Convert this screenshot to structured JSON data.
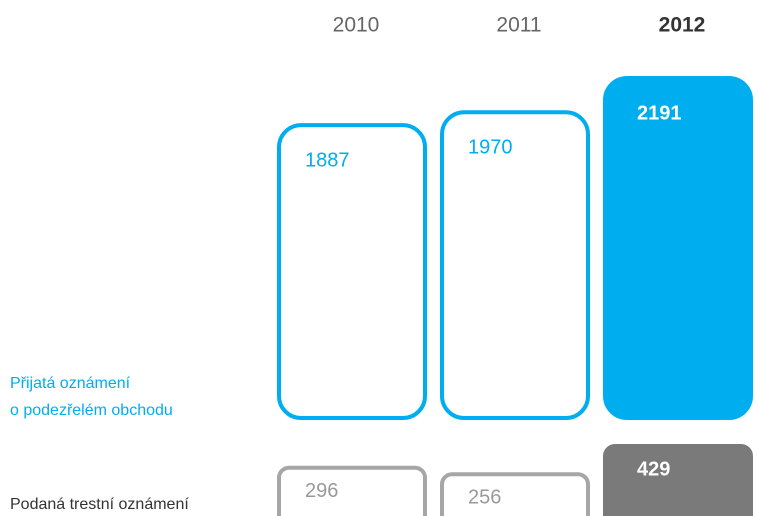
{
  "chart_data": {
    "type": "bar",
    "categories": [
      "2010",
      "2011",
      "2012"
    ],
    "highlight": "2012",
    "series": [
      {
        "name": [
          "Přijatá oznámení",
          "o podezřelém  obchodu"
        ],
        "color": "#00aeef",
        "values": [
          1887,
          1970,
          2191
        ]
      },
      {
        "name": [
          "Podaná trestní oznámení"
        ],
        "color": "#a6a6a6",
        "highlight_color": "#7a7a7a",
        "values": [
          296,
          256,
          429
        ]
      }
    ]
  }
}
